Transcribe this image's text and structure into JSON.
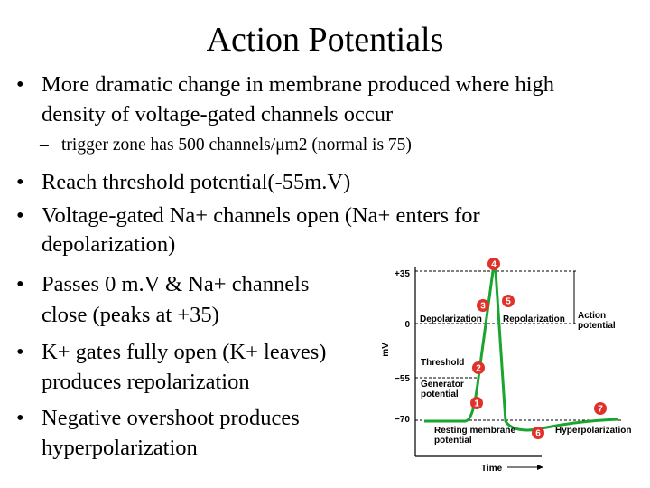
{
  "title": "Action Potentials",
  "bullets": [
    {
      "lines": [
        "More dramatic change in membrane produced where high",
        "density of voltage-gated channels occur"
      ],
      "sub": [
        "trigger zone has 500 channels/μm2 (normal is 75)"
      ]
    },
    {
      "lines": [
        "Reach threshold potential(-55m.V)"
      ]
    },
    {
      "lines": [
        "Voltage-gated Na+ channels open (Na+ enters for",
        "depolarization)"
      ]
    },
    {
      "lines": [
        "Passes 0 m.V & Na+ channels",
        "close (peaks at +35)"
      ]
    },
    {
      "lines": [
        "K+ gates fully open (K+ leaves)",
        "produces repolarization"
      ]
    },
    {
      "lines": [
        "Negative overshoot produces",
        "hyperpolarization"
      ]
    }
  ],
  "figure": {
    "y_axis_label": "mV",
    "x_axis_label": "Time",
    "levels": [
      "+35",
      "0",
      "−55",
      "−70"
    ],
    "labels": {
      "depolarization": [
        "Depolarization"
      ],
      "repolarization": [
        "Repolarization"
      ],
      "action_potential": [
        "Action",
        "potential"
      ],
      "threshold": [
        "Threshold"
      ],
      "generator_potential": [
        "Generator",
        "potential"
      ],
      "resting_potential": [
        "Resting membrane",
        "potential"
      ],
      "hyperpolarization": [
        "Hyperpolarization"
      ]
    },
    "markers": [
      "1",
      "2",
      "3",
      "4",
      "5",
      "6",
      "7"
    ]
  }
}
